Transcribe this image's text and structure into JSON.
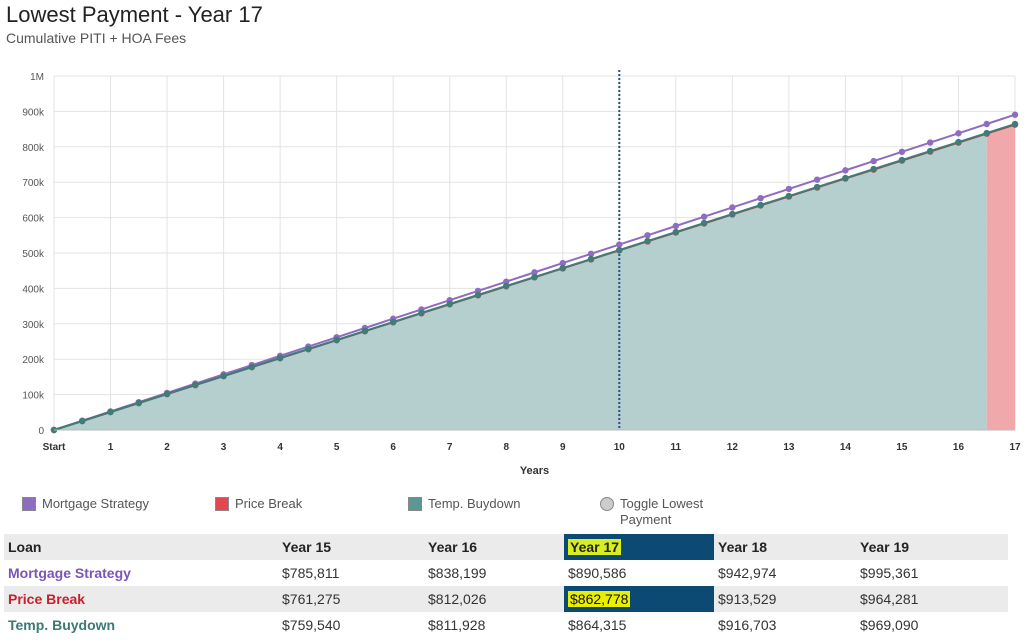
{
  "header": {
    "title": "Lowest Payment - Year 17",
    "subtitle": "Cumulative PITI + HOA Fees"
  },
  "legend": {
    "items": [
      {
        "label": "Mortgage Strategy",
        "color": "#8e6cc2"
      },
      {
        "label": "Price Break",
        "color": "#e0474f"
      },
      {
        "label": "Temp. Buydown",
        "color": "#5e9791"
      }
    ],
    "toggle_label": "Toggle Lowest Payment"
  },
  "chart_data": {
    "type": "line",
    "xlabel": "Years",
    "ylabel": "",
    "x_ticks": [
      "Start",
      "1",
      "2",
      "3",
      "4",
      "5",
      "6",
      "7",
      "8",
      "9",
      "10",
      "11",
      "12",
      "13",
      "14",
      "15",
      "16",
      "17"
    ],
    "y_ticks": [
      "0",
      "100k",
      "200k",
      "300k",
      "400k",
      "500k",
      "600k",
      "700k",
      "800k",
      "900k",
      "1M"
    ],
    "ylim": [
      0,
      1000000
    ],
    "xlim": [
      0,
      17
    ],
    "highlight_year": 10,
    "point_step_years": 0.5,
    "series": [
      {
        "name": "Mortgage Strategy",
        "color": "#8e6cc2",
        "end_value": 890586
      },
      {
        "name": "Price Break",
        "color": "#c0303a",
        "end_value": 862778
      },
      {
        "name": "Temp. Buydown",
        "color": "#3f7d77",
        "end_value": 864315
      }
    ],
    "fill_colors": {
      "area": "#b5cece",
      "lowest_band": "#f0a8ab"
    },
    "grid": true
  },
  "table": {
    "headers": [
      "Loan",
      "Year 15",
      "Year 16",
      "Year 17",
      "Year 18",
      "Year 19"
    ],
    "rows": [
      {
        "label": "Mortgage Strategy",
        "color": "#7a55b8",
        "values": [
          "$785,811",
          "$838,199",
          "$890,586",
          "$942,974",
          "$995,361"
        ]
      },
      {
        "label": "Price Break",
        "color": "#c8202b",
        "values": [
          "$761,275",
          "$812,026",
          "$862,778",
          "$913,529",
          "$964,281"
        ]
      },
      {
        "label": "Temp. Buydown",
        "color": "#3a7a73",
        "values": [
          "$759,540",
          "$811,928",
          "$864,315",
          "$916,703",
          "$969,090"
        ]
      }
    ]
  }
}
